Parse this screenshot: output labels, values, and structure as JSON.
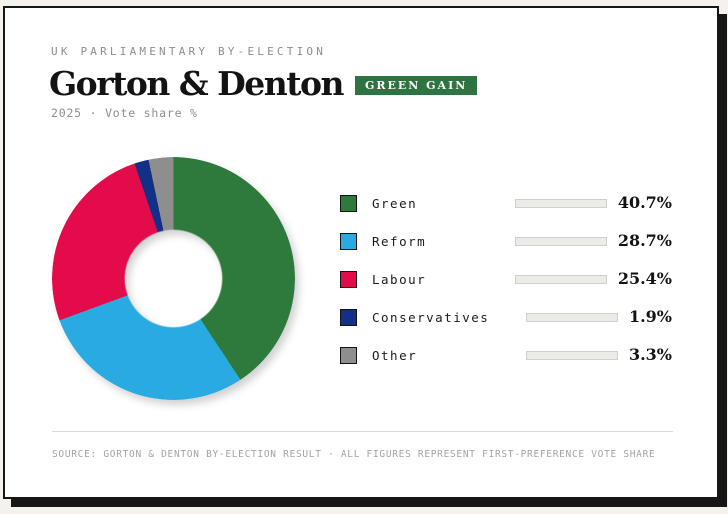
{
  "page": {
    "eyebrow": "UK PARLIAMENTARY BY-ELECTION",
    "title": "Gorton & Denton",
    "badge": "GREEN GAIN",
    "subtitle": "2025 · Vote share %",
    "footer": "SOURCE: GORTON & DENTON BY-ELECTION RESULT · ALL FIGURES REPRESENT FIRST-PREFERENCE VOTE SHARE"
  },
  "colors": {
    "page_bg": "#f5f2ee",
    "card_bg": "#ffffff",
    "ink": "#161616",
    "badge_bg": "#2e7443",
    "muted_text": "#8d8d8d",
    "footer_text": "#a3a3a3",
    "bar_track": "#edebe8"
  },
  "chart_data": {
    "type": "pie",
    "variant": "donut",
    "title": "Gorton & Denton by-election 2025 · vote share %",
    "start_angle_deg": 0,
    "direction": "clockwise",
    "hole_ratio": 0.4,
    "legend_position": "right",
    "series": [
      {
        "label": "Green",
        "value": 40.7,
        "display": "40.7%",
        "color": "#2e7a3c"
      },
      {
        "label": "Reform",
        "value": 28.7,
        "display": "28.7%",
        "color": "#29abe2"
      },
      {
        "label": "Labour",
        "value": 25.4,
        "display": "25.4%",
        "color": "#e40b4b"
      },
      {
        "label": "Conservatives",
        "value": 1.9,
        "display": "1.9%",
        "color": "#123186"
      },
      {
        "label": "Other",
        "value": 3.3,
        "display": "3.3%",
        "color": "#8e8e8e"
      }
    ]
  }
}
